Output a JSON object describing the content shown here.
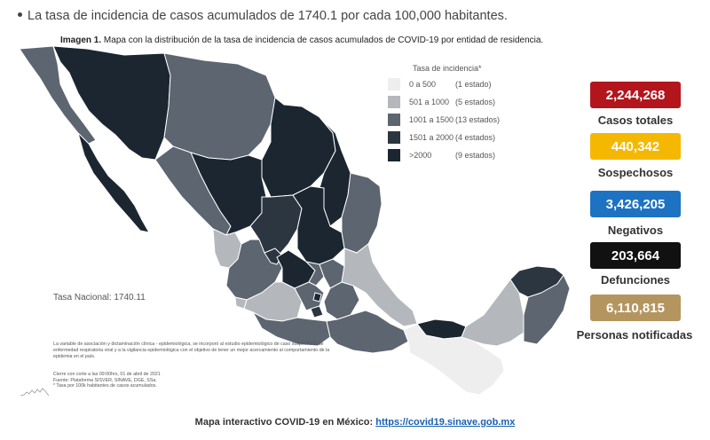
{
  "header": {
    "bullet_text": "La tasa de incidencia de casos acumulados de 1740.1 por cada 100,000 habitantes.",
    "caption_bold": "Imagen 1.",
    "caption_text": "Mapa con la distribución de la tasa de incidencia de casos acumulados de COVID-19 por entidad de residencia."
  },
  "legend": {
    "title": "Tasa de incidencia*",
    "items": [
      {
        "range": "0 a   500",
        "count": "(1 estado)",
        "color": "#eeeeee"
      },
      {
        "range": "501 a  1000",
        "count": "(5 estados)",
        "color": "#b4b7bc"
      },
      {
        "range": "1001 a  1500",
        "count": "(13 estados)",
        "color": "#5c6570"
      },
      {
        "range": "1501 a  2000",
        "count": "(4 estados)",
        "color": "#2c3640"
      },
      {
        "range": ">2000",
        "count": "(9 estados)",
        "color": "#1b2631"
      }
    ]
  },
  "map": {
    "tasa_nacional": "Tasa Nacional: 1740.11",
    "footnote": "La variable de asociación y dictaminación clínica - epidemiológica, se incorporó al estudio epidemiológico de caso sospechoso de enfermedad respiratoria viral y a la vigilancia epidemiológica con el objetivo de tener un mejor acercamiento al comportamiento de la epidemia en el país.",
    "footnote_cut": "Cierre con corte a las 09:00hrs, 01 de abril de 2021",
    "footnote_source": "Fuente: Plataforma SISVER, SINAVE, DGE, SSa.",
    "footnote_rate": "* Tasa por 100k habitantes de casos acumulados."
  },
  "stats": [
    {
      "value": "2,244,268",
      "label": "Casos totales",
      "color": "#b3151c"
    },
    {
      "value": "440,342",
      "label": "Sospechosos",
      "color": "#f5b800"
    },
    {
      "value": "3,426,205",
      "label": "Negativos",
      "color": "#1d72c2"
    },
    {
      "value": "203,664",
      "label": "Defunciones",
      "color": "#111111"
    },
    {
      "value": "6,110,815",
      "label": "Personas notificadas",
      "color": "#b5955f"
    }
  ],
  "footer": {
    "label": "Mapa interactivo COVID-19 en México:",
    "link": "https://covid19.sinave.gob.mx"
  }
}
